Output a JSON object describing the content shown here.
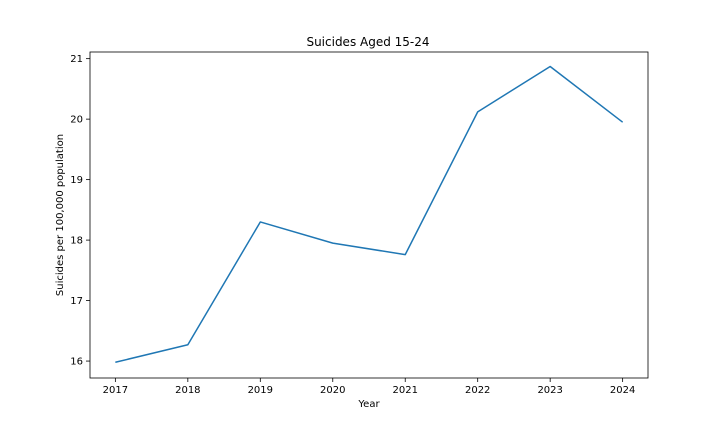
{
  "chart_data": {
    "type": "line",
    "title": "Suicides Aged 15-24",
    "xlabel": "Year",
    "ylabel": "Suicides per 100,000 population",
    "x": [
      2017,
      2018,
      2019,
      2020,
      2021,
      2022,
      2023,
      2024
    ],
    "series": [
      {
        "values": [
          15.98,
          16.27,
          18.3,
          17.95,
          17.76,
          20.12,
          20.87,
          19.95
        ]
      }
    ],
    "xlim": [
      2016.65,
      2024.35
    ],
    "ylim": [
      15.72,
      21.11
    ],
    "yticks": [
      16,
      17,
      18,
      19,
      20,
      21
    ],
    "grid": false,
    "line_color": "#1f77b4"
  }
}
